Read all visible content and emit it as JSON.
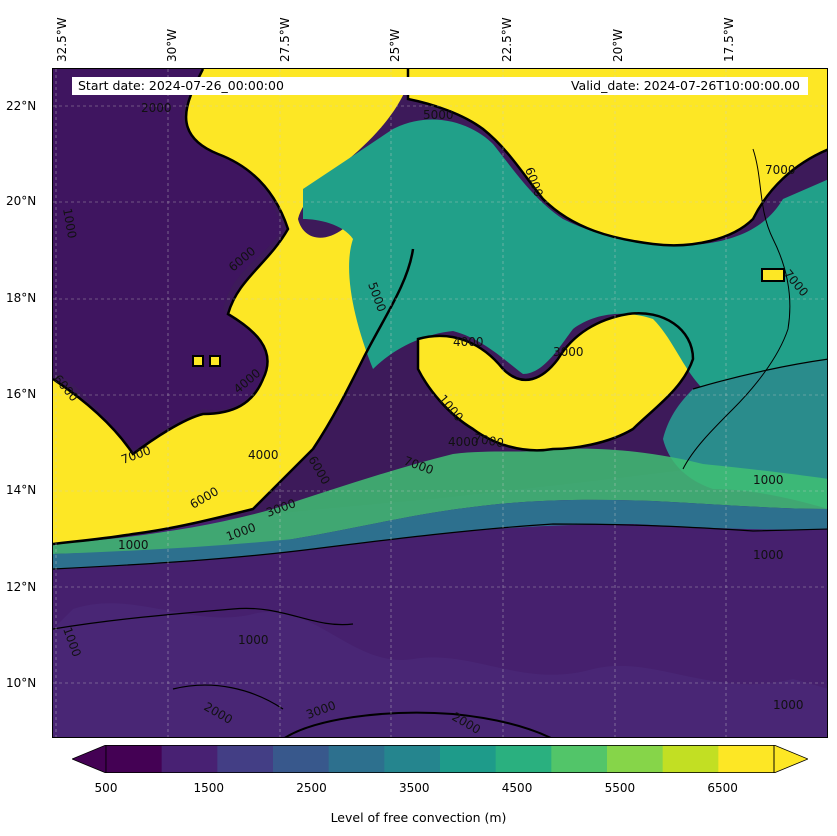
{
  "map": {
    "banner": {
      "start": "Start date: 2024-07-26_00:00:00",
      "valid": "Valid_date: 2024-07-26T10:00:00.00"
    },
    "lon_labels": [
      "32.5°W",
      "30°W",
      "27.5°W",
      "25°W",
      "22.5°W",
      "20°W",
      "17.5°W"
    ],
    "lat_labels": [
      "22°N",
      "20°N",
      "18°N",
      "16°N",
      "14°N",
      "12°N",
      "10°N"
    ],
    "contour_labels": [
      "2000",
      "5000",
      "6000",
      "7000",
      "1000",
      "7000",
      "6000",
      "5000",
      "4000",
      "3000",
      "1000",
      "4000",
      "4000",
      "4000",
      "6000",
      "7000",
      "6000",
      "7000",
      "6000",
      "3000",
      "1000",
      "1000",
      "1000",
      "1000",
      "2000",
      "1000",
      "3000",
      "2000",
      "1000",
      "7000",
      "1000"
    ],
    "colorbar": {
      "ticks": [
        "500",
        "1500",
        "2500",
        "3500",
        "4500",
        "5500",
        "6500"
      ],
      "label": "Level of free convection (m)",
      "levels": [
        500,
        1000,
        1500,
        2000,
        2500,
        3000,
        3500,
        4000,
        4500,
        5000,
        5500,
        6000,
        6500,
        7000
      ],
      "colors": [
        "#440154",
        "#482173",
        "#433e85",
        "#38588c",
        "#2d708e",
        "#25858e",
        "#1e9b8a",
        "#2ab07f",
        "#52c569",
        "#86d549",
        "#c2df23",
        "#fde725"
      ]
    },
    "colors": {
      "below_min": "#440154",
      "above_max": "#fde725",
      "deep": "#3d0f5c",
      "low": "#46206e",
      "teal": "#21a089",
      "teal_dark": "#2a8c8c",
      "green": "#3fbf73",
      "yellow": "#fde725"
    }
  }
}
